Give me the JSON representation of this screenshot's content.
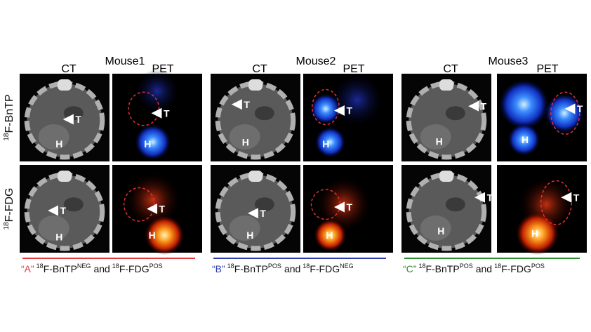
{
  "row_labels": [
    {
      "sup": "18",
      "text": "F-BnTP"
    },
    {
      "sup": "18",
      "text": "F-FDG"
    }
  ],
  "image_labels": {
    "tumor": "T",
    "heart": "H"
  },
  "mice": [
    {
      "title": "Mouse1",
      "columns": [
        "CT",
        "PET"
      ],
      "caption": {
        "letter": "“A”",
        "probe1": {
          "sup": "18",
          "name": "F-BnTP",
          "status": "NEG"
        },
        "joiner": "and",
        "probe2": {
          "sup": "18",
          "name": "F-FDG",
          "status": "POS"
        }
      }
    },
    {
      "title": "Mouse2",
      "columns": [
        "CT",
        "PET"
      ],
      "caption": {
        "letter": "“B”",
        "probe1": {
          "sup": "18",
          "name": "F-BnTP",
          "status": "POS"
        },
        "joiner": "and",
        "probe2": {
          "sup": "18",
          "name": "F-FDG",
          "status": "NEG"
        }
      }
    },
    {
      "title": "Mouse3",
      "columns": [
        "CT",
        "PET"
      ],
      "caption": {
        "letter": "“C”",
        "probe1": {
          "sup": "18",
          "name": "F-BnTP",
          "status": "POS"
        },
        "joiner": "and",
        "probe2": {
          "sup": "18",
          "name": "F-FDG",
          "status": "POS"
        }
      }
    }
  ]
}
